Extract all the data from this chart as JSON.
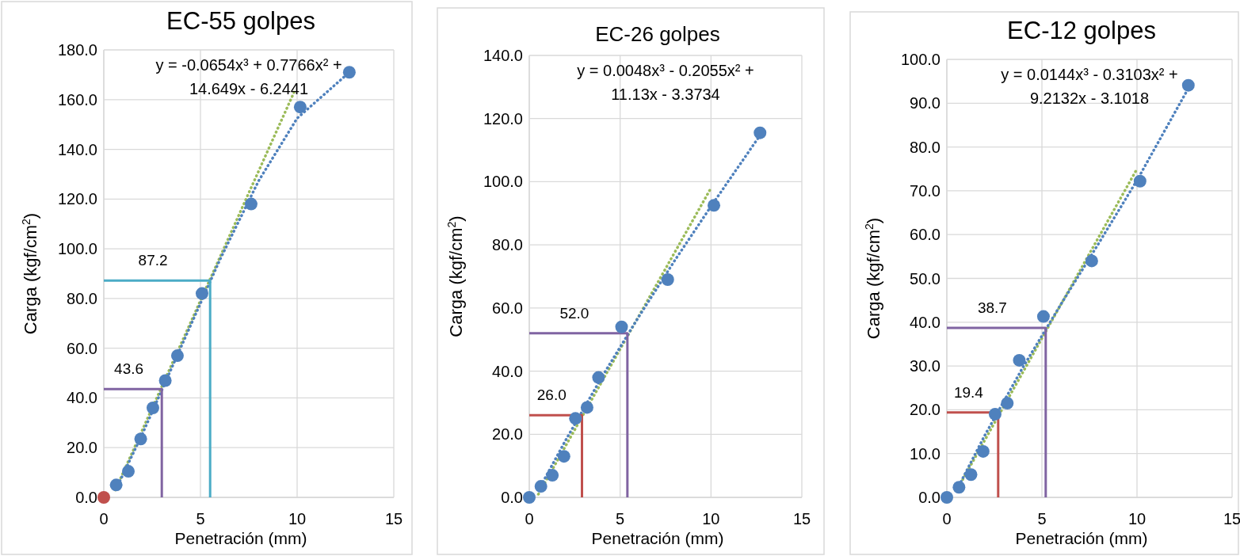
{
  "chart_data": [
    {
      "type": "scatter",
      "title": "EC-55 golpes",
      "xlabel": "Penetración (mm)",
      "ylabel": "Carga (kgf/cm$^{2}$)",
      "xlim": [
        0,
        15
      ],
      "xticks": [
        0,
        5,
        10,
        15
      ],
      "ylim": [
        0,
        180
      ],
      "yticks": [
        {
          "value": 0,
          "label": "0.0"
        },
        {
          "value": 20,
          "label": "20.0"
        },
        {
          "value": 40,
          "label": "40.0"
        },
        {
          "value": 60,
          "label": "60.0"
        },
        {
          "value": 80,
          "label": "80.0"
        },
        {
          "value": 100,
          "label": "100.0"
        },
        {
          "value": 120,
          "label": "120.0"
        },
        {
          "value": 140,
          "label": "140.0"
        },
        {
          "value": 160,
          "label": "160.0"
        },
        {
          "value": 180,
          "label": "180.0"
        }
      ],
      "grid": true,
      "annotations": [
        "y = -0.0654x³ + 0.7766x² +\n14.649x - 6.2441",
        {
          "text": "87.2",
          "x": 5.5,
          "y": 87.2
        },
        {
          "text": "43.6",
          "x": 3.0,
          "y": 43.6
        }
      ],
      "series": [
        {
          "type": "line",
          "color": "#9bbb59",
          "line_style": "dotted",
          "x": [
            0.6,
            9.9
          ],
          "values": [
            3,
            164
          ]
        },
        {
          "type": "line",
          "color": "#4f81bd",
          "line_style": "dotted",
          "x": [
            0.64,
            2,
            4,
            6,
            8,
            10,
            12.7
          ],
          "values": [
            3.4,
            25.6,
            60.6,
            95.5,
            127.2,
            152.5,
            171.0
          ]
        },
        {
          "type": "line",
          "color": "#8064a2",
          "line_style": "solid",
          "x": [
            0,
            3.0,
            3.0
          ],
          "values": [
            43.6,
            43.6,
            0
          ]
        },
        {
          "type": "line",
          "color": "#4bacc6",
          "line_style": "solid",
          "x": [
            0,
            5.5,
            5.5
          ],
          "values": [
            87.2,
            87.2,
            0
          ]
        },
        {
          "marker": "circle",
          "colors": [
            "#c0504d",
            "#4f81bd",
            "#4f81bd",
            "#4f81bd",
            "#4f81bd",
            "#4f81bd",
            "#4f81bd",
            "#4f81bd",
            "#4f81bd",
            "#4f81bd",
            "#4f81bd"
          ],
          "x": [
            0,
            0.64,
            1.27,
            1.91,
            2.54,
            3.18,
            3.81,
            5.08,
            7.62,
            10.16,
            12.7
          ],
          "values": [
            0,
            5,
            10.5,
            23.5,
            36,
            47,
            57,
            82,
            118,
            157,
            171
          ]
        }
      ]
    },
    {
      "type": "scatter",
      "title": "EC-26 golpes",
      "xlabel": "Penetración (mm)",
      "ylabel": "Carga (kgf/cm$^{2}$)",
      "xlim": [
        0,
        15
      ],
      "xticks": [
        0,
        5,
        10,
        15
      ],
      "ylim": [
        0,
        140
      ],
      "yticks": [
        {
          "value": 0,
          "label": "0.0"
        },
        {
          "value": 20,
          "label": "20.0"
        },
        {
          "value": 40,
          "label": "40.0"
        },
        {
          "value": 60,
          "label": "60.0"
        },
        {
          "value": 80,
          "label": "80.0"
        },
        {
          "value": 100,
          "label": "100.0"
        },
        {
          "value": 120,
          "label": "120.0"
        },
        {
          "value": 140,
          "label": "140.0"
        }
      ],
      "grid": true,
      "annotations": [
        "y = 0.0048x³ - 0.2055x² +\n11.13x - 3.3734",
        {
          "text": "52.0",
          "x": 5.4,
          "y": 52
        },
        {
          "text": "26.0",
          "x": 2.9,
          "y": 26
        }
      ],
      "series": [
        {
          "type": "line",
          "color": "#9bbb59",
          "line_style": "dotted",
          "x": [
            0.5,
            10
          ],
          "values": [
            1,
            98
          ]
        },
        {
          "type": "line",
          "color": "#4f81bd",
          "line_style": "dotted",
          "x": [
            0.64,
            2,
            4,
            6,
            8,
            10,
            12.7
          ],
          "values": [
            3.7,
            18.1,
            38.2,
            57.0,
            75.0,
            92.2,
            114.7
          ]
        },
        {
          "type": "line",
          "color": "#c0504d",
          "line_style": "solid",
          "x": [
            0,
            2.9,
            2.9
          ],
          "values": [
            26,
            26,
            0
          ]
        },
        {
          "type": "line",
          "color": "#8064a2",
          "line_style": "solid",
          "x": [
            0,
            5.4,
            5.4
          ],
          "values": [
            52,
            52,
            0
          ]
        },
        {
          "marker": "circle",
          "color": "#4f81bd",
          "x": [
            0,
            0.64,
            1.27,
            1.91,
            2.54,
            3.18,
            3.81,
            5.08,
            7.62,
            10.16,
            12.7
          ],
          "values": [
            0,
            3.5,
            7,
            13,
            25,
            28.5,
            38,
            54,
            69,
            92.5,
            115.5
          ]
        }
      ]
    },
    {
      "type": "scatter",
      "title": "EC-12 golpes",
      "xlabel": "Penetración (mm)",
      "ylabel": "Carga (kgf/cm$^{2}$)",
      "xlim": [
        0,
        15
      ],
      "xticks": [
        0,
        5,
        10,
        15
      ],
      "ylim": [
        0,
        100
      ],
      "yticks": [
        {
          "value": 0,
          "label": "0.0"
        },
        {
          "value": 10,
          "label": "10.0"
        },
        {
          "value": 20,
          "label": "20.0"
        },
        {
          "value": 30,
          "label": "30.0"
        },
        {
          "value": 40,
          "label": "40.0"
        },
        {
          "value": 50,
          "label": "50.0"
        },
        {
          "value": 60,
          "label": "60.0"
        },
        {
          "value": 70,
          "label": "70.0"
        },
        {
          "value": 80,
          "label": "80.0"
        },
        {
          "value": 90,
          "label": "90.0"
        },
        {
          "value": 100,
          "label": "100.0"
        }
      ],
      "grid": true,
      "annotations": [
        "y = 0.0144x³ - 0.3103x² +\n9.2132x - 3.1018",
        {
          "text": "38.7",
          "x": 5.2,
          "y": 38.7
        },
        {
          "text": "19.4",
          "x": 2.7,
          "y": 19.4
        }
      ],
      "series": [
        {
          "type": "line",
          "color": "#9bbb59",
          "line_style": "dotted",
          "x": [
            0.5,
            10
          ],
          "values": [
            1.5,
            75
          ]
        },
        {
          "type": "line",
          "color": "#4f81bd",
          "line_style": "dotted",
          "x": [
            0.64,
            2,
            4,
            6,
            8,
            10,
            12.7
          ],
          "values": [
            2.7,
            14.2,
            29.7,
            44.1,
            58.1,
            72.4,
            93.4
          ]
        },
        {
          "type": "line",
          "color": "#c0504d",
          "line_style": "solid",
          "x": [
            0,
            2.7,
            2.7
          ],
          "values": [
            19.4,
            19.4,
            0
          ]
        },
        {
          "type": "line",
          "color": "#8064a2",
          "line_style": "solid",
          "x": [
            0,
            5.2,
            5.2
          ],
          "values": [
            38.7,
            38.7,
            0
          ]
        },
        {
          "marker": "circle",
          "color": "#4f81bd",
          "x": [
            0,
            0.64,
            1.27,
            1.91,
            2.54,
            3.18,
            3.81,
            5.08,
            7.62,
            10.16,
            12.7
          ],
          "values": [
            0,
            2.3,
            5.2,
            10.5,
            19,
            21.5,
            31.3,
            41.3,
            54,
            72.2,
            94.1
          ]
        }
      ]
    }
  ]
}
